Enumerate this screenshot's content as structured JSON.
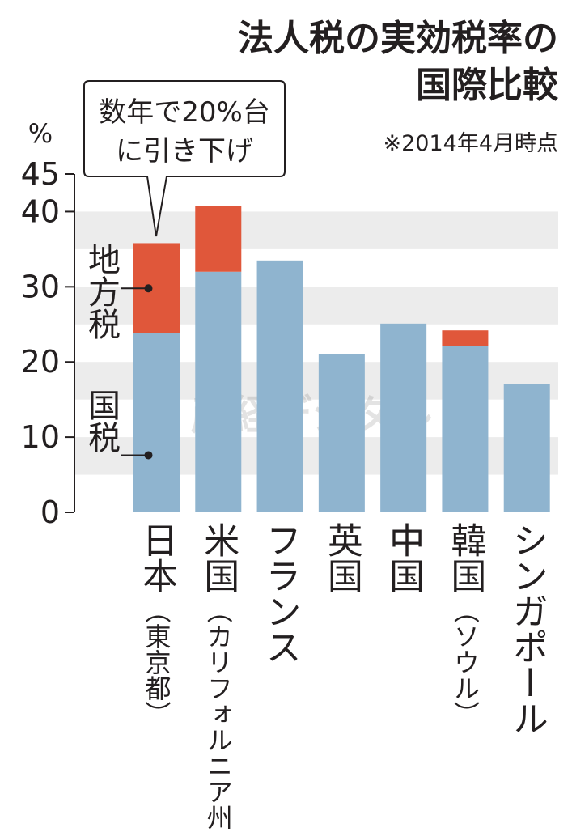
{
  "chart_data": {
    "type": "stacked_bar",
    "title": [
      "法人税の実効税率の",
      "国際比較"
    ],
    "subtitle": "※2014年4月時点",
    "y_unit": "%",
    "annotation": [
      "数年で20%台",
      "に引き下げ"
    ],
    "watermark": "産経デジタル",
    "categories": [
      "日本",
      "米国",
      "フランス",
      "英国",
      "中国",
      "韓国",
      "シンガポール"
    ],
    "category_notes": [
      "（東京都）",
      "（カリフォルニア州）",
      null,
      null,
      null,
      "（ソウル）",
      null
    ],
    "series": [
      {
        "name": "国税",
        "color": "#8fb4cf",
        "values": [
          23.8,
          32.0,
          33.5,
          21.1,
          25.1,
          22.1,
          17.1
        ]
      },
      {
        "name": "地方税",
        "color": "#e0573a",
        "values": [
          12.0,
          8.8,
          null,
          null,
          null,
          2.1,
          null
        ]
      }
    ],
    "ylim": [
      0,
      45
    ],
    "yticks": [
      0,
      10,
      20,
      30,
      40,
      45
    ],
    "grid_bands": true
  }
}
